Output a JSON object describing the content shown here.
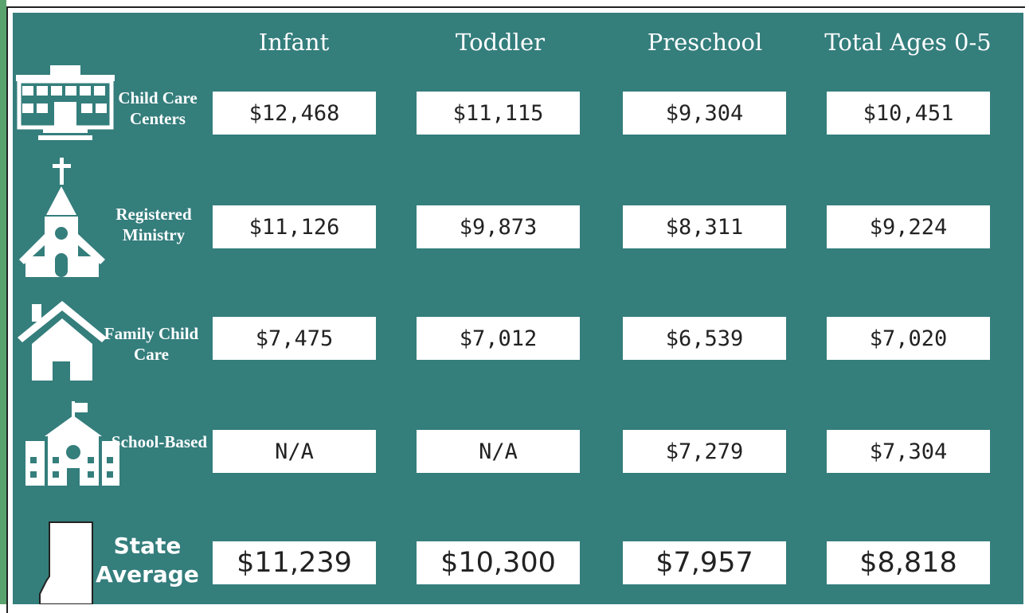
{
  "header": {
    "columns": [
      "Infant",
      "Toddler",
      "Preschool",
      "Total Ages 0-5"
    ]
  },
  "rows": [
    {
      "label": "Child Care Centers",
      "values": [
        "$12,468",
        "$11,115",
        "$9,304",
        "$10,451"
      ]
    },
    {
      "label": "Registered Ministry",
      "values": [
        "$11,126",
        "$9,873",
        "$8,311",
        "$9,224"
      ]
    },
    {
      "label": "Family Child Care",
      "values": [
        "$7,475",
        "$7,012",
        "$6,539",
        "$7,020"
      ]
    },
    {
      "label": "School-Based",
      "values": [
        "N/A",
        "N/A",
        "$7,279",
        "$7,304"
      ]
    },
    {
      "label": "State Average",
      "values": [
        "$11,239",
        "$10,300",
        "$7,957",
        "$8,818"
      ]
    }
  ]
}
